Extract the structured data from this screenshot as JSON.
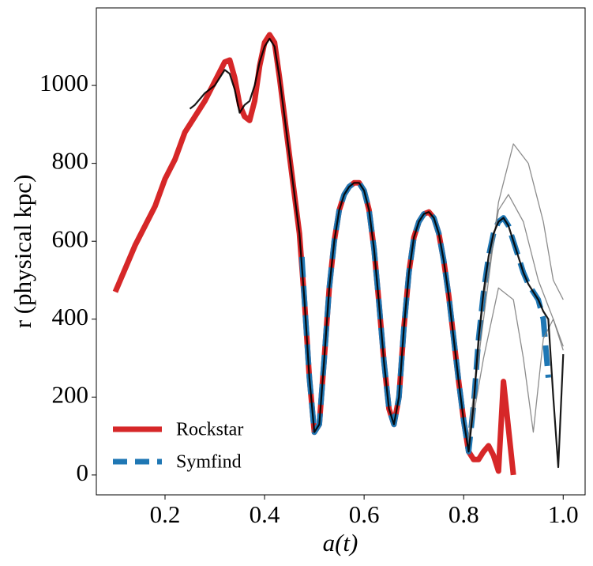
{
  "chart_data": {
    "type": "line",
    "xlabel": "a(t)",
    "ylabel": "r (physical kpc)",
    "xlim": [
      0.062,
      1.044
    ],
    "ylim": [
      -51,
      1199
    ],
    "xticks": [
      0.2,
      0.4,
      0.6,
      0.8,
      {
        "value": 1,
        "label": "1.0"
      }
    ],
    "yticks": [
      0,
      200,
      400,
      600,
      800,
      1000
    ],
    "legend": "lower left",
    "series": [
      {
        "name": "Rockstar",
        "color": "#d62728",
        "linestyle": "solid",
        "x": [
          0.1,
          0.12,
          0.14,
          0.16,
          0.18,
          0.2,
          0.22,
          0.24,
          0.26,
          0.28,
          0.3,
          0.32,
          0.33,
          0.34,
          0.35,
          0.36,
          0.37,
          0.38,
          0.39,
          0.4,
          0.41,
          0.42,
          0.43,
          0.44,
          0.45,
          0.46,
          0.47,
          0.48,
          0.49,
          0.5,
          0.51,
          0.52,
          0.53,
          0.54,
          0.55,
          0.56,
          0.57,
          0.58,
          0.59,
          0.6,
          0.61,
          0.62,
          0.63,
          0.64,
          0.65,
          0.66,
          0.67,
          0.68,
          0.69,
          0.7,
          0.71,
          0.72,
          0.73,
          0.74,
          0.75,
          0.76,
          0.77,
          0.78,
          0.79,
          0.8,
          0.81,
          0.82,
          0.83,
          0.84,
          0.85,
          0.86,
          0.87,
          0.88,
          0.89,
          0.9
        ],
        "values": [
          470,
          530,
          590,
          640,
          690,
          760,
          810,
          880,
          920,
          960,
          1010,
          1060,
          1065,
          1020,
          950,
          920,
          910,
          960,
          1050,
          1110,
          1130,
          1110,
          1020,
          920,
          820,
          720,
          620,
          450,
          250,
          110,
          130,
          300,
          480,
          600,
          680,
          720,
          740,
          750,
          750,
          730,
          680,
          580,
          440,
          290,
          170,
          130,
          200,
          380,
          520,
          610,
          650,
          670,
          675,
          660,
          620,
          550,
          460,
          350,
          240,
          140,
          60,
          40,
          40,
          60,
          75,
          50,
          10,
          240,
          120,
          0
        ]
      },
      {
        "name": "Symfind",
        "color": "#1f77b4",
        "linestyle": "dashed",
        "x": [
          0.475,
          0.48,
          0.49,
          0.5,
          0.51,
          0.52,
          0.53,
          0.54,
          0.55,
          0.56,
          0.57,
          0.58,
          0.59,
          0.6,
          0.61,
          0.62,
          0.63,
          0.64,
          0.65,
          0.66,
          0.67,
          0.68,
          0.69,
          0.7,
          0.71,
          0.72,
          0.73,
          0.74,
          0.75,
          0.76,
          0.77,
          0.78,
          0.79,
          0.8,
          0.81,
          0.82,
          0.83,
          0.84,
          0.85,
          0.86,
          0.87,
          0.88,
          0.89,
          0.9,
          0.91,
          0.92,
          0.93,
          0.94,
          0.95,
          0.96,
          0.97
        ],
        "values": [
          560,
          450,
          250,
          110,
          130,
          300,
          480,
          600,
          680,
          720,
          740,
          750,
          750,
          730,
          680,
          580,
          440,
          290,
          170,
          130,
          200,
          380,
          520,
          610,
          650,
          670,
          675,
          660,
          620,
          550,
          460,
          350,
          240,
          140,
          60,
          180,
          350,
          470,
          560,
          620,
          650,
          660,
          640,
          600,
          560,
          520,
          490,
          470,
          450,
          400,
          250
        ]
      },
      {
        "color": "#808080",
        "linestyle": "solid",
        "x": [
          0.81,
          0.84,
          0.87,
          0.9,
          0.93,
          0.96,
          0.98,
          1.0
        ],
        "values": [
          100,
          400,
          700,
          850,
          800,
          650,
          500,
          450
        ]
      },
      {
        "color": "#808080",
        "linestyle": "solid",
        "x": [
          0.81,
          0.84,
          0.87,
          0.9,
          0.92,
          0.94,
          0.96,
          0.98,
          1.0
        ],
        "values": [
          80,
          300,
          480,
          450,
          300,
          110,
          350,
          400,
          320
        ]
      },
      {
        "color": "#808080",
        "linestyle": "solid",
        "x": [
          0.81,
          0.84,
          0.87,
          0.89,
          0.92,
          0.95,
          0.98,
          1.0
        ],
        "values": [
          90,
          450,
          680,
          720,
          650,
          500,
          400,
          330
        ]
      },
      {
        "color": "#000000",
        "linestyle": "solid",
        "x": [
          0.25,
          0.26,
          0.28,
          0.3,
          0.32,
          0.33,
          0.34,
          0.35,
          0.36,
          0.37,
          0.38,
          0.39,
          0.4,
          0.41,
          0.42,
          0.43,
          0.44,
          0.45,
          0.46,
          0.47,
          0.48,
          0.49,
          0.5,
          0.51,
          0.52,
          0.53,
          0.54,
          0.55,
          0.56,
          0.57,
          0.58,
          0.59,
          0.6,
          0.61,
          0.62,
          0.63,
          0.64,
          0.65,
          0.66,
          0.67,
          0.68,
          0.69,
          0.7,
          0.71,
          0.72,
          0.73,
          0.74,
          0.75,
          0.76,
          0.77,
          0.78,
          0.79,
          0.8,
          0.81,
          0.82,
          0.83,
          0.84,
          0.85,
          0.86,
          0.87,
          0.88,
          0.89,
          0.9,
          0.91,
          0.92,
          0.93,
          0.94,
          0.95,
          0.96,
          0.97,
          0.98,
          0.99,
          1.0
        ],
        "values": [
          940,
          950,
          980,
          1000,
          1040,
          1030,
          990,
          930,
          950,
          960,
          1000,
          1060,
          1100,
          1120,
          1100,
          1020,
          920,
          820,
          720,
          620,
          450,
          250,
          110,
          130,
          300,
          480,
          600,
          680,
          720,
          740,
          750,
          750,
          730,
          680,
          580,
          440,
          290,
          170,
          130,
          200,
          380,
          520,
          610,
          650,
          670,
          675,
          660,
          620,
          550,
          460,
          350,
          240,
          140,
          60,
          180,
          350,
          470,
          560,
          620,
          650,
          660,
          640,
          600,
          560,
          520,
          490,
          470,
          450,
          420,
          400,
          200,
          20,
          310
        ]
      }
    ]
  }
}
